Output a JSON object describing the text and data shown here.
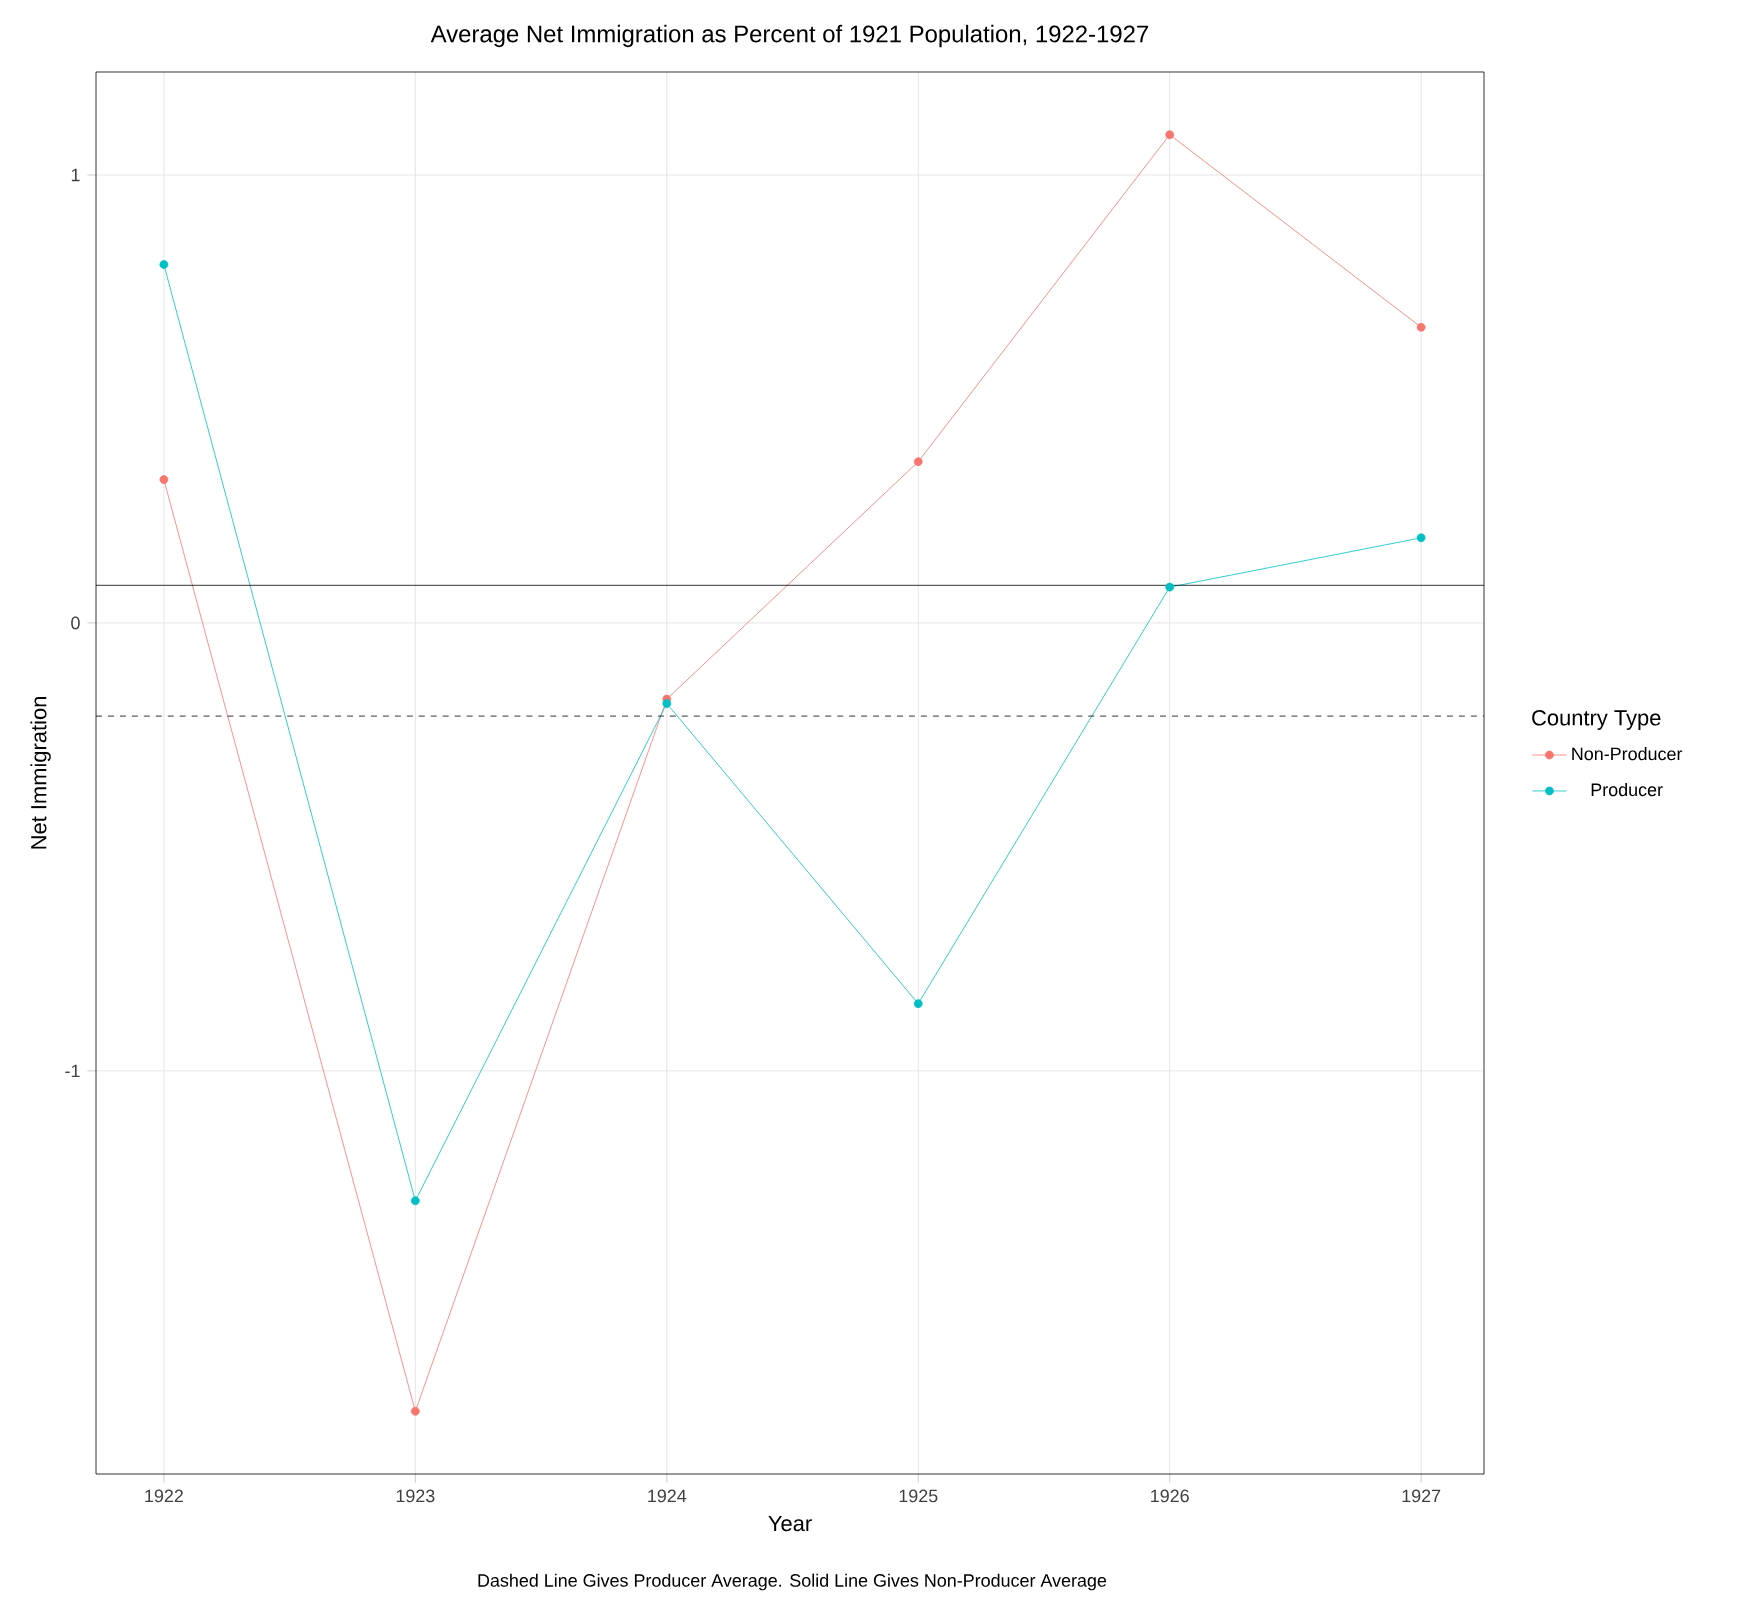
{
  "chart_data": {
    "type": "line",
    "title": "Average Net Immigration as Percent of 1921 Population, 1922-1927",
    "xlabel": "Year",
    "ylabel": "Net Immigration",
    "legend_title": "Country Type",
    "x": [
      1922,
      1923,
      1924,
      1925,
      1926,
      1927
    ],
    "series": [
      {
        "name": "Non-Producer",
        "color": "#f8766d",
        "values": [
          0.32,
          -1.76,
          -0.17,
          0.36,
          1.09,
          0.66
        ]
      },
      {
        "name": "Producer",
        "color": "#00bfc4",
        "values": [
          0.8,
          -1.29,
          -0.18,
          -0.85,
          0.08,
          0.19
        ]
      }
    ],
    "xlim": [
      1921.73,
      1927.25
    ],
    "ylim": [
      -1.9,
      1.23
    ],
    "xticks": [
      1922,
      1923,
      1924,
      1925,
      1926,
      1927
    ],
    "yticks": [
      -1,
      0,
      1
    ],
    "ref_lines": [
      {
        "axis": "y",
        "value": 0.084,
        "color": "#000000",
        "line_style": "solid"
      },
      {
        "axis": "y",
        "value": -0.208,
        "color": "#000000",
        "line_style": "dashed"
      }
    ],
    "annotations": [
      "Dashed Line Gives Producer Average. Solid Line Gives Non-Producer Average"
    ],
    "grid": true,
    "legend": "right",
    "marker": "circle",
    "line_style": "solid"
  }
}
